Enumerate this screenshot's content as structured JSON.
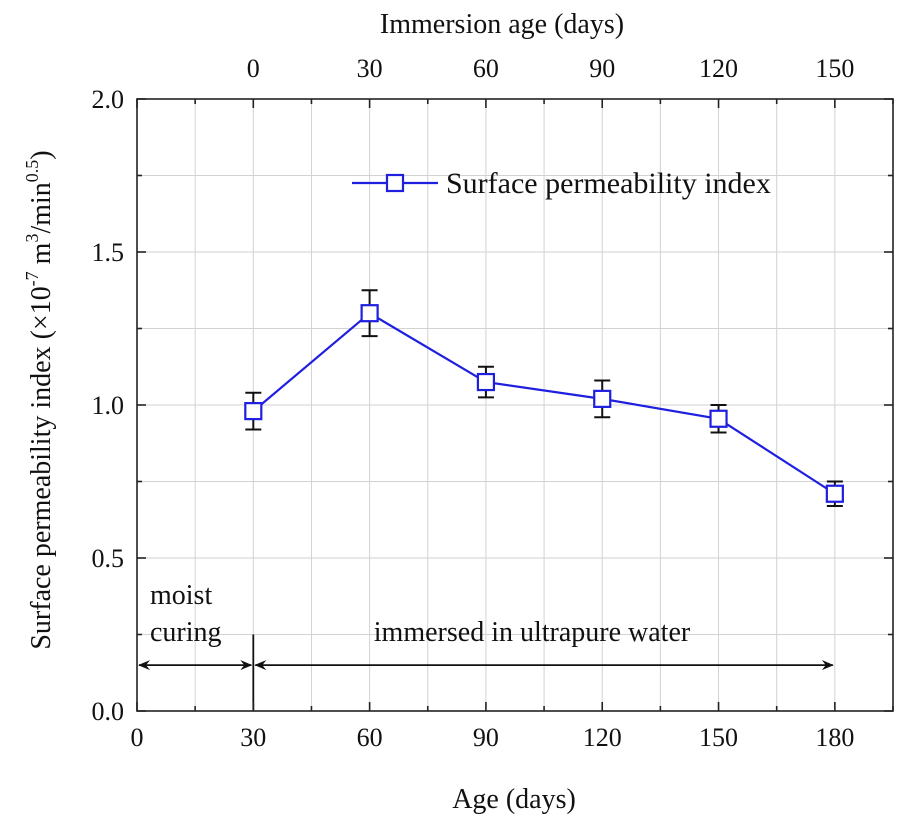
{
  "chart_data": {
    "type": "line",
    "title": "",
    "xlabel": "Age (days)",
    "ylabel": "Surface permeability index (×10",
    "ylabel_exp": "-7",
    "ylabel_unit": " m",
    "ylabel_unit_exp": "3",
    "ylabel_unit_rest": "/min",
    "ylabel_unit_rest_exp": "0.5",
    "ylabel_close": ")",
    "x2label": "Immersion age (days)",
    "xlim": [
      0,
      195
    ],
    "ylim": [
      0.0,
      2.0
    ],
    "x_ticks": [
      0,
      30,
      60,
      90,
      120,
      150,
      180
    ],
    "x_tick_labels": [
      "0",
      "30",
      "60",
      "90",
      "120",
      "150",
      "180"
    ],
    "y_ticks": [
      0.0,
      0.5,
      1.0,
      1.5,
      2.0
    ],
    "y_tick_labels": [
      "0.0",
      "0.5",
      "1.0",
      "1.5",
      "2.0"
    ],
    "x2_ticks_at_age": [
      30,
      60,
      90,
      120,
      150,
      180
    ],
    "x2_tick_labels": [
      "0",
      "30",
      "60",
      "90",
      "120",
      "150"
    ],
    "grid": true,
    "legend_position": "top-right",
    "series": [
      {
        "name": "Surface permeability index",
        "color": "#1f1fe0",
        "marker": "square-open",
        "x": [
          30,
          60,
          90,
          120,
          150,
          180
        ],
        "values": [
          0.98,
          1.3,
          1.075,
          1.02,
          0.955,
          0.71
        ],
        "error": [
          0.06,
          0.075,
          0.05,
          0.06,
          0.045,
          0.04
        ]
      }
    ],
    "annotations": {
      "moist_line1": "moist",
      "moist_line2": "curing",
      "immersed": "immersed in ultrapure water",
      "moist_range": [
        0,
        30
      ],
      "immersed_range": [
        30,
        180
      ],
      "arrow_y": 0.15,
      "divider_x": 30
    }
  }
}
